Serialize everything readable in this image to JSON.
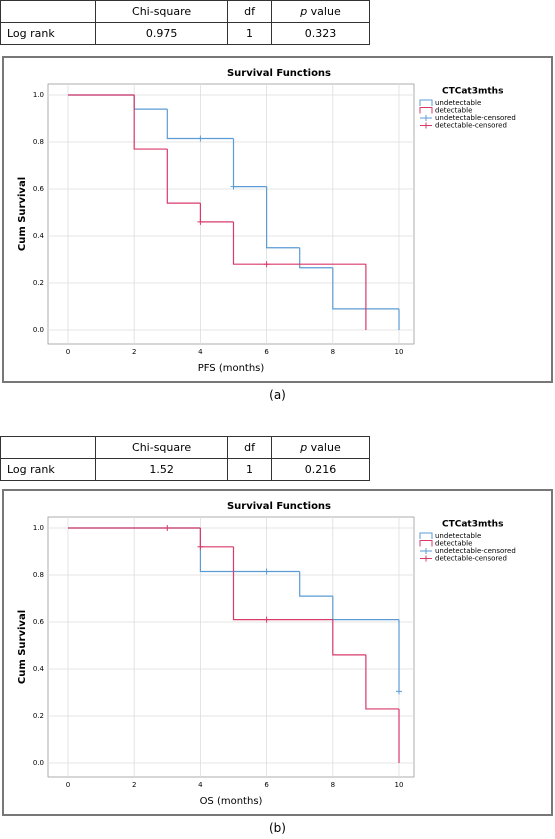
{
  "tables": [
    {
      "header": [
        "Chi-square",
        "df",
        "p value"
      ],
      "row": [
        "Log rank",
        "0.975",
        "1",
        "0.323"
      ]
    },
    {
      "header": [
        "Chi-square",
        "df",
        "p value"
      ],
      "row": [
        "Log rank",
        "1.52",
        "1",
        "0.216"
      ]
    }
  ],
  "captions": [
    "(a)",
    "(b)"
  ],
  "chart_data": [
    {
      "type": "step",
      "title": "Survival Functions",
      "x_label": "PFS (months)",
      "y_label": "Cum Survival",
      "legend_title": "CTCat3mths",
      "legend": "right",
      "grid": true,
      "xlim": [
        0,
        10
      ],
      "xticks": [
        0,
        2,
        4,
        6,
        8,
        10
      ],
      "ylim": [
        0,
        1
      ],
      "yticks": [
        {
          "value": 0,
          "label": "0.0"
        },
        0.2,
        0.4,
        0.6,
        0.8,
        {
          "value": 1,
          "label": "1.0"
        }
      ],
      "series": [
        {
          "name": "undetectable",
          "color": "#5b9bd5",
          "x": [
            0,
            2,
            3,
            5,
            6,
            7,
            8,
            10
          ],
          "values": [
            1,
            0.94,
            0.815,
            0.61,
            0.35,
            0.265,
            0.09,
            0
          ]
        },
        {
          "name": "detectable",
          "color": "#d93a6a",
          "x": [
            0,
            2,
            3,
            4,
            5,
            9
          ],
          "values": [
            1,
            0.77,
            0.54,
            0.46,
            0.28,
            0
          ]
        },
        {
          "name": "undetectable-censored",
          "color": "#5b9bd5",
          "censored": true,
          "x": [
            4,
            5
          ],
          "values": [
            0.815,
            0.61
          ]
        },
        {
          "name": "detectable-censored",
          "color": "#d93a6a",
          "censored": true,
          "x": [
            4,
            6
          ],
          "values": [
            0.46,
            0.28
          ]
        }
      ]
    },
    {
      "type": "step",
      "title": "Survival Functions",
      "x_label": "OS  (months)",
      "y_label": "Cum Survival",
      "legend_title": "CTCat3mths",
      "legend": "right",
      "grid": true,
      "xlim": [
        0,
        10
      ],
      "xticks": [
        0,
        2,
        4,
        6,
        8,
        10
      ],
      "ylim": [
        0,
        1
      ],
      "yticks": [
        {
          "value": 0,
          "label": "0.0"
        },
        0.2,
        0.4,
        0.6,
        0.8,
        {
          "value": 1,
          "label": "1.0"
        }
      ],
      "series": [
        {
          "name": "undetectable",
          "color": "#5b9bd5",
          "x": [
            0,
            4,
            7,
            8,
            10
          ],
          "values": [
            1,
            0.815,
            0.71,
            0.61,
            0.305
          ]
        },
        {
          "name": "detectable",
          "color": "#d93a6a",
          "x": [
            0,
            4,
            5,
            8,
            9,
            10
          ],
          "values": [
            1,
            0.92,
            0.61,
            0.46,
            0.23,
            0
          ]
        },
        {
          "name": "undetectable-censored",
          "color": "#5b9bd5",
          "censored": true,
          "x": [
            6,
            10
          ],
          "values": [
            0.815,
            0.305
          ]
        },
        {
          "name": "detectable-censored",
          "color": "#d93a6a",
          "censored": true,
          "x": [
            3,
            4,
            6
          ],
          "values": [
            1,
            0.92,
            0.61
          ]
        }
      ]
    }
  ]
}
